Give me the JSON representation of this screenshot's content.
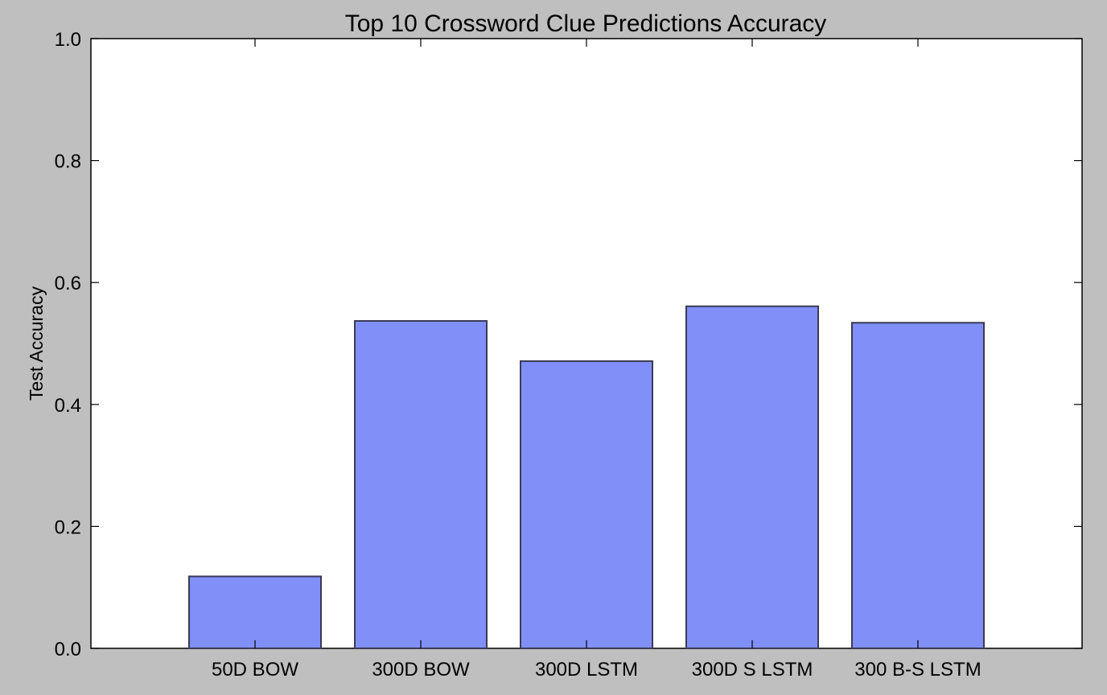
{
  "chart_data": {
    "type": "bar",
    "title": "Top 10 Crossword Clue Predictions Accuracy",
    "xlabel": "",
    "ylabel": "Test Accuracy",
    "categories": [
      "50D BOW",
      "300D BOW",
      "300D LSTM",
      "300D S LSTM",
      "300 B-S LSTM"
    ],
    "values": [
      0.118,
      0.537,
      0.471,
      0.561,
      0.534
    ],
    "ylim": [
      0.0,
      1.0
    ],
    "yticks": [
      "0.0",
      "0.2",
      "0.4",
      "0.6",
      "0.8",
      "1.0"
    ],
    "grid": false,
    "legend": "none",
    "bar_color": "#8090f8",
    "bar_edge_color": "#3a3a55",
    "background_color": "#bfbfbf",
    "plot_background": "#ffffff"
  }
}
